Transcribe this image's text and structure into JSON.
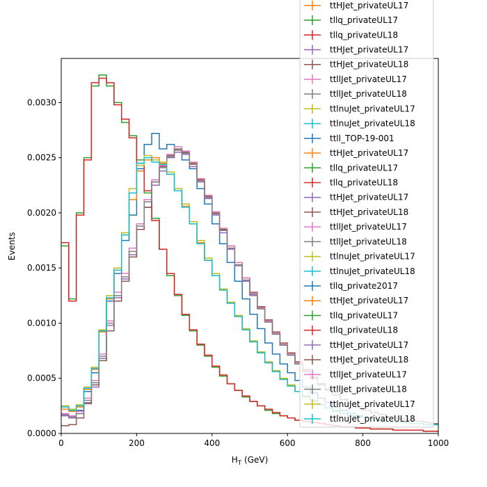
{
  "chart_data": {
    "type": "line",
    "style": "step-histogram",
    "xlabel": "H",
    "xlabel_sub": "T",
    "xlabel_unit": "(GeV)",
    "ylabel": "Events",
    "xlim": [
      0,
      1000
    ],
    "ylim": [
      0,
      0.0034
    ],
    "xticks": [
      0,
      200,
      400,
      600,
      800,
      1000
    ],
    "yticks": [
      0.0,
      0.0005,
      0.001,
      0.0015,
      0.002,
      0.0025,
      0.003
    ],
    "ytick_labels": [
      "0.0000",
      "0.0005",
      "0.0010",
      "0.0015",
      "0.0020",
      "0.0025",
      "0.0030"
    ],
    "grid": false,
    "legend_position": "top-right",
    "bin_width": 20,
    "series": [
      {
        "name": "ttll_TOP-19-001",
        "color": "#1f77b4",
        "values": [
          0.00017,
          0.00015,
          0.00021,
          0.00038,
          0.00055,
          0.00093,
          0.0012,
          0.00145,
          0.00175,
          0.00198,
          0.0024,
          0.00262,
          0.00272,
          0.00258,
          0.00262,
          0.00257,
          0.00248,
          0.0024,
          0.00222,
          0.00208,
          0.0019,
          0.00172,
          0.00155,
          0.00138,
          0.00122,
          0.00108,
          0.00095,
          0.00082,
          0.00072,
          0.00063,
          0.00055,
          0.00048,
          0.00042,
          0.00037,
          0.00032,
          0.00028,
          0.00024,
          0.00021,
          0.00018,
          0.00016,
          0.00014,
          0.00013,
          0.00012,
          0.00011,
          0.0001,
          0.0001,
          9e-05,
          9e-05,
          8e-05,
          8e-05
        ]
      },
      {
        "name": "ttHJet_privateUL17",
        "color": "#ff7f0e",
        "values": [
          0.00022,
          0.0002,
          0.00024,
          0.0004,
          0.00058,
          0.00092,
          0.00122,
          0.00148,
          0.0018,
          0.00212,
          0.00238,
          0.00248,
          0.0025,
          0.00245,
          0.00235,
          0.0022,
          0.00206,
          0.0019,
          0.00173,
          0.00157,
          0.00143,
          0.0013,
          0.00118,
          0.00106,
          0.00094,
          0.00083,
          0.00073,
          0.00064,
          0.00056,
          0.00049,
          0.00043,
          0.00038,
          0.00033,
          0.00029,
          0.00026,
          0.00023,
          0.0002,
          0.00018,
          0.00016,
          0.00015,
          0.00014,
          0.00013,
          0.00012,
          0.00011,
          0.0001,
          0.0001,
          9e-05,
          9e-05,
          8e-05,
          8e-05
        ]
      },
      {
        "name": "tllq_privateUL17",
        "color": "#2ca02c",
        "values": [
          0.0017,
          0.00122,
          0.002,
          0.0025,
          0.00315,
          0.00325,
          0.00315,
          0.003,
          0.00282,
          0.0027,
          0.00248,
          0.00218,
          0.00195,
          0.00167,
          0.00143,
          0.00125,
          0.00107,
          0.00093,
          0.0008,
          0.0007,
          0.0006,
          0.00052,
          0.00045,
          0.00039,
          0.00033,
          0.00029,
          0.00025,
          0.00021,
          0.00018,
          0.00016,
          0.00014,
          0.00012,
          0.00011,
          0.0001,
          9e-05,
          8e-05,
          7e-05,
          6e-05,
          6e-05,
          5e-05,
          5e-05,
          4e-05,
          4e-05,
          4e-05,
          3e-05,
          3e-05,
          3e-05,
          3e-05,
          2e-05,
          2e-05
        ]
      },
      {
        "name": "tllq_privateUL18",
        "color": "#d62728",
        "values": [
          0.00173,
          0.0012,
          0.00198,
          0.00248,
          0.00318,
          0.00322,
          0.00318,
          0.00298,
          0.00285,
          0.00268,
          0.00245,
          0.0022,
          0.00193,
          0.00167,
          0.00145,
          0.00126,
          0.00108,
          0.00094,
          0.00081,
          0.00071,
          0.00061,
          0.00053,
          0.00045,
          0.00039,
          0.00034,
          0.00029,
          0.00025,
          0.00022,
          0.00019,
          0.00016,
          0.00014,
          0.00012,
          0.00011,
          0.0001,
          9e-05,
          8e-05,
          7e-05,
          6e-05,
          6e-05,
          5e-05,
          5e-05,
          4e-05,
          4e-05,
          4e-05,
          3e-05,
          3e-05,
          3e-05,
          3e-05,
          2e-05,
          2e-05
        ]
      },
      {
        "name": "ttHJet_privateUL17",
        "color": "#9467bd",
        "values": [
          0.00017,
          0.00015,
          0.00018,
          0.00028,
          0.00042,
          0.00068,
          0.00098,
          0.00123,
          0.0014,
          0.00162,
          0.00185,
          0.00205,
          0.00225,
          0.00238,
          0.0025,
          0.00255,
          0.00253,
          0.00242,
          0.00228,
          0.00213,
          0.00198,
          0.00182,
          0.00167,
          0.00152,
          0.00138,
          0.00125,
          0.00113,
          0.00101,
          0.0009,
          0.0008,
          0.00071,
          0.00063,
          0.00056,
          0.0005,
          0.00044,
          0.00039,
          0.00035,
          0.00031,
          0.00027,
          0.00024,
          0.00021,
          0.00019,
          0.00017,
          0.00015,
          0.00014,
          0.00013,
          0.00012,
          0.00011,
          0.0001,
          9e-05
        ]
      },
      {
        "name": "ttHJet_privateUL18",
        "color": "#8c564b",
        "values": [
          7e-05,
          8e-05,
          0.00014,
          0.00027,
          0.00044,
          0.00066,
          0.00093,
          0.0012,
          0.00138,
          0.0016,
          0.00185,
          0.00205,
          0.00228,
          0.00242,
          0.00252,
          0.00257,
          0.00255,
          0.00245,
          0.0023,
          0.00215,
          0.002,
          0.00185,
          0.0017,
          0.00155,
          0.00141,
          0.00128,
          0.00115,
          0.00103,
          0.00092,
          0.00082,
          0.00073,
          0.00065,
          0.00058,
          0.00051,
          0.00045,
          0.0004,
          0.00035,
          0.00031,
          0.00027,
          0.00024,
          0.00021,
          0.00019,
          0.00017,
          0.00015,
          0.00014,
          0.00013,
          0.00012,
          0.00011,
          0.0001,
          9e-05
        ]
      },
      {
        "name": "ttllJet_privateUL17",
        "color": "#e377c2",
        "values": [
          0.00018,
          0.00016,
          0.0002,
          0.00032,
          0.00048,
          0.00072,
          0.00102,
          0.00128,
          0.00145,
          0.00168,
          0.0019,
          0.00212,
          0.0023,
          0.00243,
          0.00253,
          0.0026,
          0.00256,
          0.00246,
          0.00231,
          0.00216,
          0.00201,
          0.00186,
          0.0017,
          0.00155,
          0.00141,
          0.00127,
          0.00114,
          0.00102,
          0.00091,
          0.00081,
          0.00072,
          0.00064,
          0.00057,
          0.0005,
          0.00044,
          0.00039,
          0.00035,
          0.00031,
          0.00027,
          0.00024,
          0.00021,
          0.00019,
          0.00017,
          0.00015,
          0.00014,
          0.00013,
          0.00012,
          0.00011,
          0.0001,
          9e-05
        ]
      },
      {
        "name": "ttllJet_privateUL18",
        "color": "#7f7f7f",
        "values": [
          0.00016,
          0.00014,
          0.00018,
          0.0003,
          0.00046,
          0.0007,
          0.001,
          0.00125,
          0.00142,
          0.00165,
          0.00188,
          0.0021,
          0.00228,
          0.00241,
          0.00251,
          0.00258,
          0.00254,
          0.00244,
          0.00229,
          0.00214,
          0.00199,
          0.00184,
          0.00168,
          0.00153,
          0.00139,
          0.00126,
          0.00113,
          0.00101,
          0.0009,
          0.0008,
          0.00071,
          0.00063,
          0.00056,
          0.0005,
          0.00044,
          0.00039,
          0.00035,
          0.00031,
          0.00027,
          0.00024,
          0.00021,
          0.00019,
          0.00017,
          0.00015,
          0.00014,
          0.00013,
          0.00012,
          0.00011,
          0.0001,
          9e-05
        ]
      },
      {
        "name": "ttlnuJet_privateUL17",
        "color": "#bcbd22",
        "values": [
          0.00025,
          0.00022,
          0.00026,
          0.00042,
          0.0006,
          0.00094,
          0.00125,
          0.0015,
          0.00182,
          0.00222,
          0.00243,
          0.00252,
          0.00248,
          0.00246,
          0.00237,
          0.00222,
          0.00208,
          0.00192,
          0.00175,
          0.00159,
          0.00145,
          0.00131,
          0.00119,
          0.00107,
          0.00095,
          0.00084,
          0.00074,
          0.00065,
          0.00057,
          0.0005,
          0.00044,
          0.00038,
          0.00034,
          0.0003,
          0.00026,
          0.00023,
          0.00021,
          0.00018,
          0.00016,
          0.00015,
          0.00014,
          0.00013,
          0.00012,
          0.00011,
          0.0001,
          0.0001,
          9e-05,
          9e-05,
          8e-05,
          8e-05
        ]
      },
      {
        "name": "ttlnuJet_privateUL18",
        "color": "#17becf",
        "values": [
          0.00024,
          0.00021,
          0.00025,
          0.00041,
          0.00059,
          0.00093,
          0.00123,
          0.00148,
          0.0018,
          0.00218,
          0.00245,
          0.0025,
          0.00246,
          0.00244,
          0.00235,
          0.0022,
          0.00205,
          0.0019,
          0.00172,
          0.00157,
          0.00143,
          0.0013,
          0.00118,
          0.00106,
          0.00094,
          0.00083,
          0.00073,
          0.00064,
          0.00056,
          0.00049,
          0.00043,
          0.00038,
          0.00034,
          0.0003,
          0.00026,
          0.00023,
          0.0002,
          0.00018,
          0.00016,
          0.00015,
          0.00014,
          0.00013,
          0.00012,
          0.00011,
          0.0001,
          0.0001,
          9e-05,
          9e-05,
          8e-05,
          8e-05
        ]
      }
    ],
    "legend_entries": [
      {
        "label": "ttHJet_privateUL17",
        "color": "#ff7f0e"
      },
      {
        "label": "tllq_privateUL17",
        "color": "#2ca02c"
      },
      {
        "label": "tllq_privateUL18",
        "color": "#d62728"
      },
      {
        "label": "ttHJet_privateUL17",
        "color": "#9467bd"
      },
      {
        "label": "ttHJet_privateUL18",
        "color": "#8c564b"
      },
      {
        "label": "ttllJet_privateUL17",
        "color": "#e377c2"
      },
      {
        "label": "ttllJet_privateUL18",
        "color": "#7f7f7f"
      },
      {
        "label": "ttlnuJet_privateUL17",
        "color": "#bcbd22"
      },
      {
        "label": "ttlnuJet_privateUL18",
        "color": "#17becf"
      },
      {
        "label": "ttll_TOP-19-001",
        "color": "#1f77b4"
      },
      {
        "label": "ttHJet_privateUL17",
        "color": "#ff7f0e"
      },
      {
        "label": "tllq_privateUL17",
        "color": "#2ca02c"
      },
      {
        "label": "tllq_privateUL18",
        "color": "#d62728"
      },
      {
        "label": "ttHJet_privateUL17",
        "color": "#9467bd"
      },
      {
        "label": "ttHJet_privateUL18",
        "color": "#8c564b"
      },
      {
        "label": "ttllJet_privateUL17",
        "color": "#e377c2"
      },
      {
        "label": "ttllJet_privateUL18",
        "color": "#7f7f7f"
      },
      {
        "label": "ttlnuJet_privateUL17",
        "color": "#bcbd22"
      },
      {
        "label": "ttlnuJet_privateUL18",
        "color": "#17becf"
      },
      {
        "label": "tllq_private2017",
        "color": "#1f77b4"
      },
      {
        "label": "ttHJet_privateUL17",
        "color": "#ff7f0e"
      },
      {
        "label": "tllq_privateUL17",
        "color": "#2ca02c"
      },
      {
        "label": "tllq_privateUL18",
        "color": "#d62728"
      },
      {
        "label": "ttHJet_privateUL17",
        "color": "#9467bd"
      },
      {
        "label": "ttHJet_privateUL18",
        "color": "#8c564b"
      },
      {
        "label": "ttllJet_privateUL17",
        "color": "#e377c2"
      },
      {
        "label": "ttllJet_privateUL18",
        "color": "#7f7f7f"
      },
      {
        "label": "ttlnuJet_privateUL17",
        "color": "#bcbd22"
      },
      {
        "label": "ttlnuJet_privateUL18",
        "color": "#17becf"
      }
    ]
  }
}
